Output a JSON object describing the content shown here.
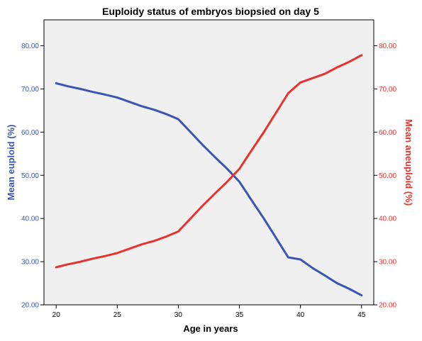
{
  "chart_data": {
    "type": "line",
    "title": "Euploidy status of embryos biopsied on day 5",
    "xlabel": "Age in years",
    "ylabel_left": "Mean euploid (%)",
    "ylabel_right": "Mean aneuploid (%)",
    "xlim": [
      19,
      46
    ],
    "ylim": [
      20,
      86
    ],
    "x_ticks": [
      "20",
      "25",
      "30",
      "35",
      "40",
      "45"
    ],
    "y_ticks": [
      "20.00",
      "30.00",
      "40.00",
      "50.00",
      "60.00",
      "70.00",
      "80.00"
    ],
    "grid": false,
    "series": [
      {
        "name": "Mean euploid (%)",
        "axis": "left",
        "color": "#3a55b4",
        "x": [
          20,
          21,
          22,
          23,
          24,
          25,
          26,
          27,
          28,
          29,
          30,
          31,
          32,
          33,
          34,
          35,
          36,
          37,
          38,
          39,
          40,
          41,
          42,
          43,
          44,
          45
        ],
        "y": [
          71.3,
          70.6,
          70.0,
          69.3,
          68.7,
          68.0,
          67.0,
          66.0,
          65.2,
          64.2,
          63.0,
          60.0,
          57.0,
          54.2,
          51.5,
          48.5,
          44.2,
          40.0,
          35.5,
          31.0,
          30.5,
          28.5,
          26.8,
          25.0,
          23.7,
          22.2
        ]
      },
      {
        "name": "Mean aneuploid (%)",
        "axis": "right",
        "color": "#e8322e",
        "x": [
          20,
          21,
          22,
          23,
          24,
          25,
          26,
          27,
          28,
          29,
          30,
          31,
          32,
          33,
          34,
          35,
          36,
          37,
          38,
          39,
          40,
          41,
          42,
          43,
          44,
          45
        ],
        "y": [
          28.7,
          29.4,
          30.0,
          30.7,
          31.3,
          32.0,
          33.0,
          34.0,
          34.8,
          35.8,
          37.0,
          40.0,
          43.0,
          45.8,
          48.5,
          51.5,
          55.8,
          60.0,
          64.5,
          69.0,
          71.5,
          72.5,
          73.5,
          75.0,
          76.3,
          77.8
        ]
      }
    ]
  }
}
